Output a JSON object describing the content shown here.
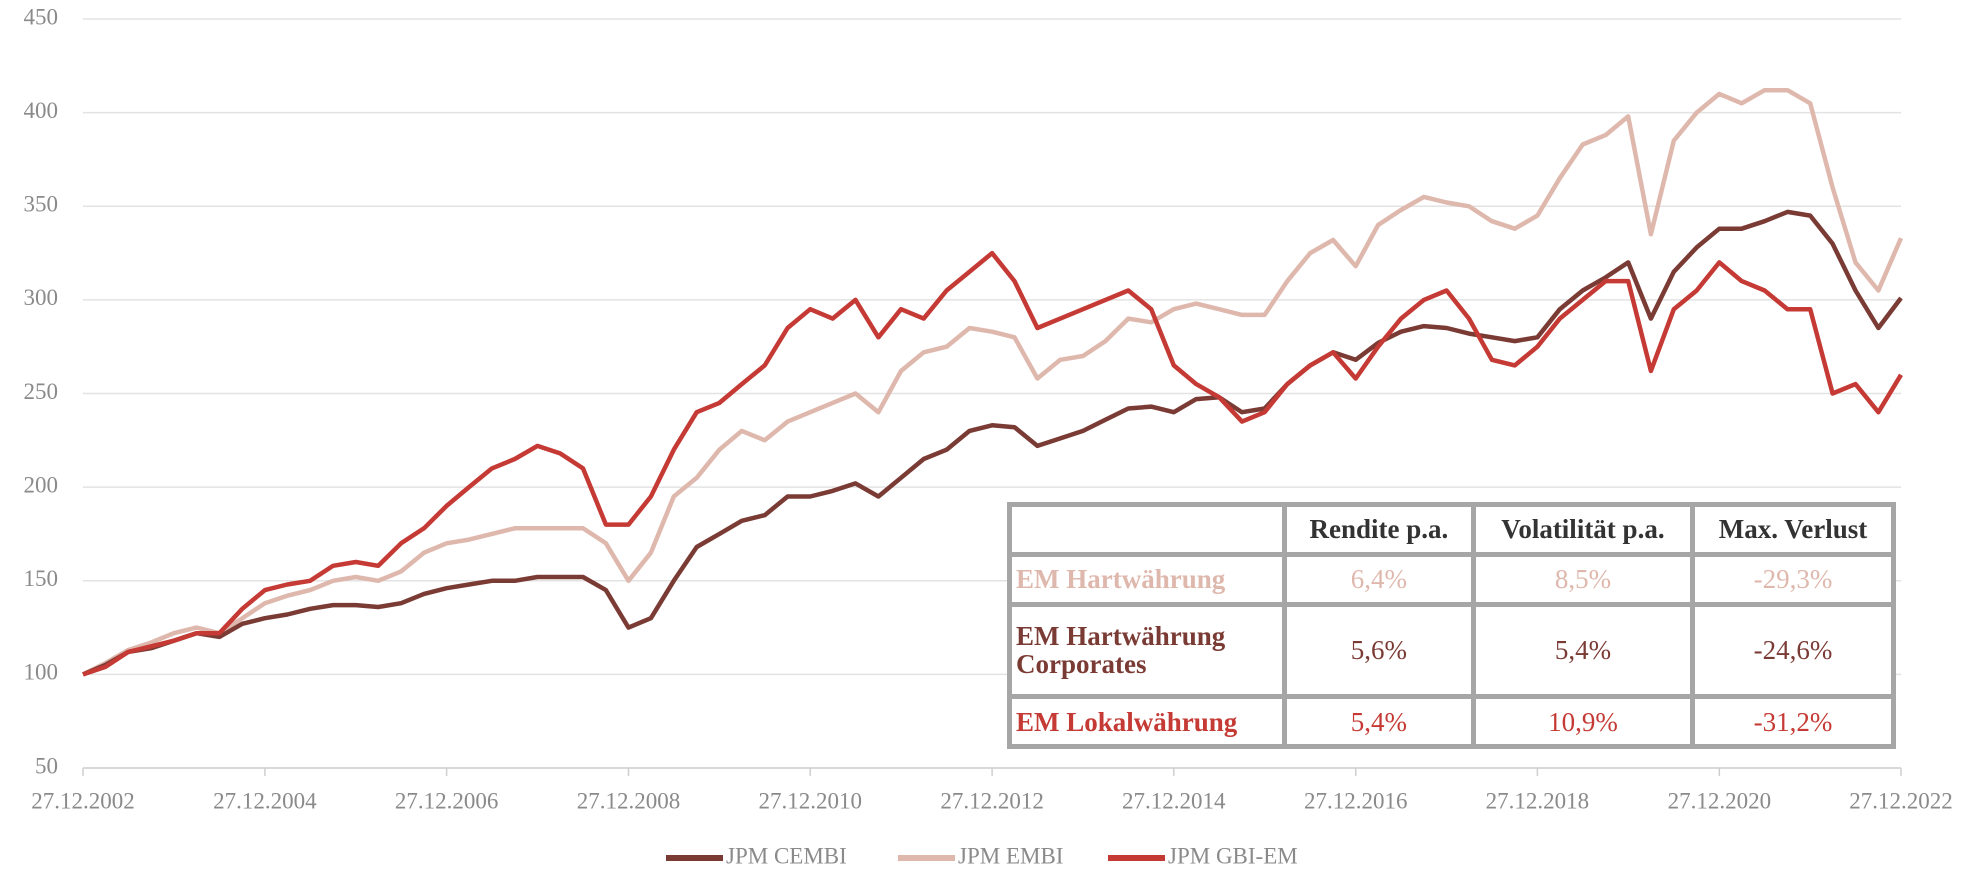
{
  "chart_data": {
    "type": "line",
    "x": [
      "27.12.2002",
      "27.03.2003",
      "27.06.2003",
      "27.09.2003",
      "27.12.2003",
      "27.03.2004",
      "27.06.2004",
      "27.09.2004",
      "27.12.2004",
      "27.03.2005",
      "27.06.2005",
      "27.09.2005",
      "27.12.2005",
      "27.03.2006",
      "27.06.2006",
      "27.09.2006",
      "27.12.2006",
      "27.03.2007",
      "27.06.2007",
      "27.09.2007",
      "27.12.2007",
      "27.03.2008",
      "27.06.2008",
      "27.09.2008",
      "27.12.2008",
      "27.03.2009",
      "27.06.2009",
      "27.09.2009",
      "27.12.2009",
      "27.03.2010",
      "27.06.2010",
      "27.09.2010",
      "27.12.2010",
      "27.03.2011",
      "27.06.2011",
      "27.09.2011",
      "27.12.2011",
      "27.03.2012",
      "27.06.2012",
      "27.09.2012",
      "27.12.2012",
      "27.03.2013",
      "27.06.2013",
      "27.09.2013",
      "27.12.2013",
      "27.03.2014",
      "27.06.2014",
      "27.09.2014",
      "27.12.2014",
      "27.03.2015",
      "27.06.2015",
      "27.09.2015",
      "27.12.2015",
      "27.03.2016",
      "27.06.2016",
      "27.09.2016",
      "27.12.2016",
      "27.03.2017",
      "27.06.2017",
      "27.09.2017",
      "27.12.2017",
      "27.03.2018",
      "27.06.2018",
      "27.09.2018",
      "27.12.2018",
      "27.03.2019",
      "27.06.2019",
      "27.09.2019",
      "27.12.2019",
      "27.03.2020",
      "27.06.2020",
      "27.09.2020",
      "27.12.2020",
      "27.03.2021",
      "27.06.2021",
      "27.09.2021",
      "27.12.2021",
      "27.03.2022",
      "27.06.2022",
      "27.09.2022",
      "27.12.2022"
    ],
    "series": [
      {
        "name": "JPM CEMBI",
        "color": "#7b3b35",
        "values": [
          100,
          105,
          112,
          114,
          118,
          122,
          120,
          127,
          130,
          132,
          135,
          137,
          137,
          136,
          138,
          143,
          146,
          148,
          150,
          150,
          152,
          152,
          152,
          145,
          125,
          130,
          150,
          168,
          175,
          182,
          185,
          195,
          195,
          198,
          202,
          195,
          205,
          215,
          220,
          230,
          233,
          232,
          222,
          226,
          230,
          236,
          242,
          243,
          240,
          247,
          248,
          240,
          242,
          255,
          265,
          272,
          268,
          277,
          283,
          286,
          285,
          282,
          280,
          278,
          280,
          295,
          305,
          312,
          320,
          290,
          315,
          328,
          338,
          338,
          342,
          347,
          345,
          330,
          305,
          285,
          301
        ]
      },
      {
        "name": "JPM EMBI",
        "color": "#dfb8ad",
        "values": [
          100,
          106,
          113,
          117,
          122,
          125,
          122,
          130,
          138,
          142,
          145,
          150,
          152,
          150,
          155,
          165,
          170,
          172,
          175,
          178,
          178,
          178,
          178,
          170,
          150,
          165,
          195,
          205,
          220,
          230,
          225,
          235,
          240,
          245,
          250,
          240,
          262,
          272,
          275,
          285,
          283,
          280,
          258,
          268,
          270,
          278,
          290,
          288,
          295,
          298,
          295,
          292,
          292,
          310,
          325,
          332,
          318,
          340,
          348,
          355,
          352,
          350,
          342,
          338,
          345,
          365,
          383,
          388,
          398,
          335,
          385,
          400,
          410,
          405,
          412,
          412,
          405,
          360,
          320,
          305,
          333
        ]
      },
      {
        "name": "JPM GBI-EM",
        "color": "#c53a34",
        "values": [
          100,
          104,
          112,
          115,
          118,
          122,
          122,
          135,
          145,
          148,
          150,
          158,
          160,
          158,
          170,
          178,
          190,
          200,
          210,
          215,
          222,
          218,
          210,
          180,
          180,
          195,
          220,
          240,
          245,
          255,
          265,
          285,
          295,
          290,
          300,
          280,
          295,
          290,
          305,
          315,
          325,
          310,
          285,
          290,
          295,
          300,
          305,
          295,
          265,
          255,
          248,
          235,
          240,
          255,
          265,
          272,
          258,
          275,
          290,
          300,
          305,
          290,
          268,
          265,
          275,
          290,
          300,
          310,
          310,
          262,
          295,
          305,
          320,
          310,
          305,
          295,
          295,
          250,
          255,
          240,
          260
        ]
      }
    ],
    "ylim": [
      50,
      450
    ],
    "yticks": [
      50,
      100,
      150,
      200,
      250,
      300,
      350,
      400,
      450
    ],
    "xlim": [
      "27.12.2002",
      "27.12.2022"
    ],
    "xticks": [
      "27.12.2002",
      "27.12.2004",
      "27.12.2006",
      "27.12.2008",
      "27.12.2010",
      "27.12.2012",
      "27.12.2014",
      "27.12.2016",
      "27.12.2018",
      "27.12.2020",
      "27.12.2022"
    ],
    "grid": true,
    "legend": "bottom",
    "table": {
      "columns": [
        "Rendite p.a.",
        "Volatilität p.a.",
        "Max. Verlust"
      ],
      "rows": [
        {
          "label": "EM Hartwährung",
          "color": "#dfb8ad",
          "cells": [
            "6,4%",
            "8,5%",
            "-29,3%"
          ]
        },
        {
          "label": "EM Hartwährung Corporates",
          "color": "#7b3b35",
          "cells": [
            "5,6%",
            "5,4%",
            "-24,6%"
          ]
        },
        {
          "label": "EM Lokalwährung",
          "color": "#c53a34",
          "cells": [
            "5,4%",
            "10,9%",
            "-31,2%"
          ]
        }
      ]
    }
  }
}
